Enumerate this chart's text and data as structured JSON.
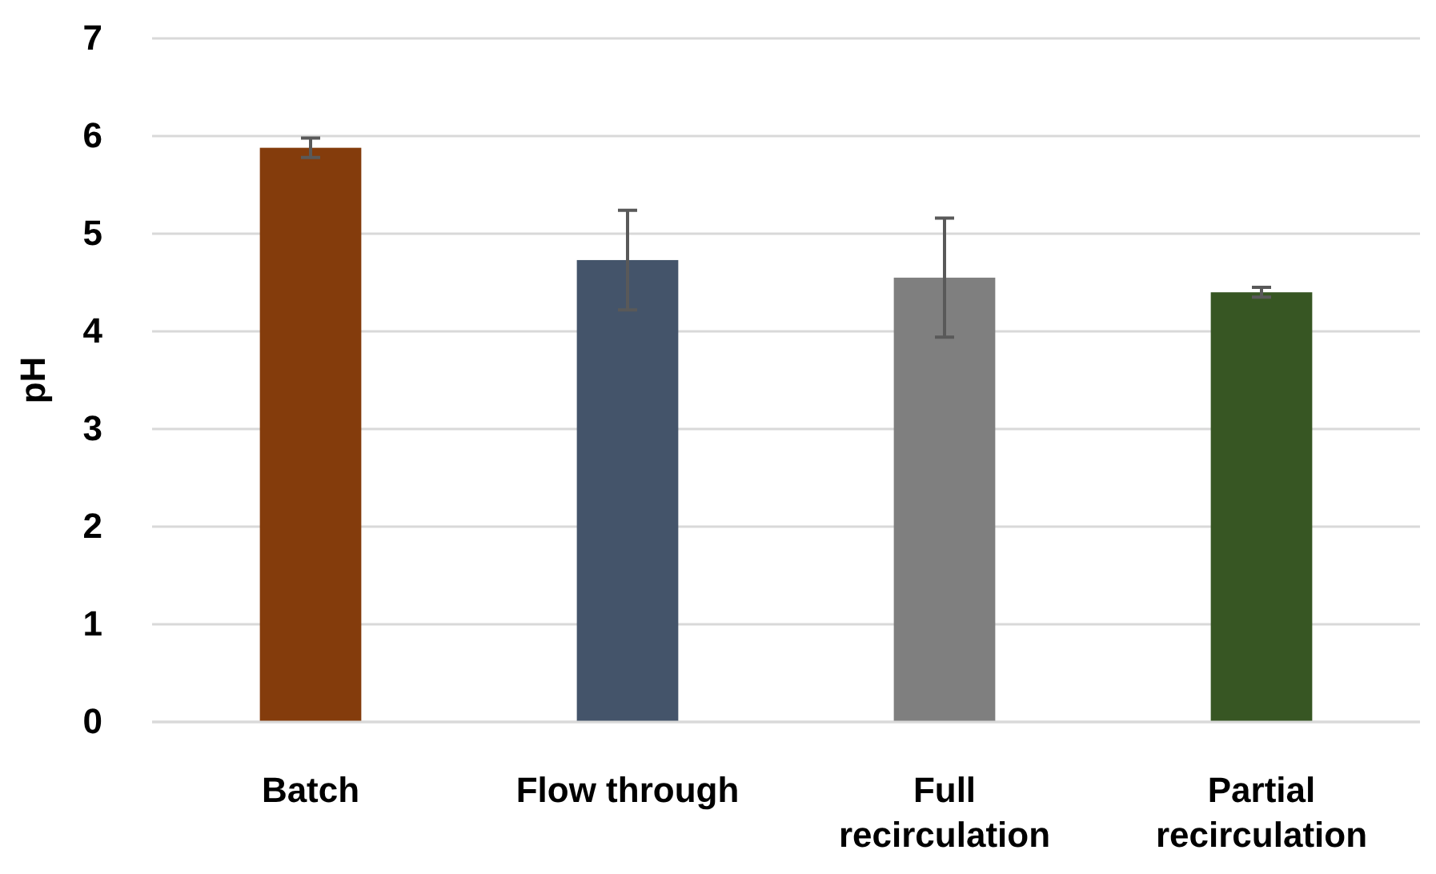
{
  "chart_data": {
    "type": "bar",
    "ylabel": "pH",
    "categories": [
      "Batch",
      "Flow through",
      "Full recirculation",
      "Partial recirculation"
    ],
    "values": [
      5.88,
      4.73,
      4.55,
      4.4
    ],
    "colors": [
      "#843c0c",
      "#44546a",
      "#7f7f7f",
      "#375623"
    ],
    "errors": [
      0.1,
      0.51,
      0.61,
      0.05
    ],
    "ylim": [
      0,
      7
    ],
    "yticks": [
      0,
      1,
      2,
      3,
      4,
      5,
      6,
      7
    ],
    "grid": "y"
  }
}
